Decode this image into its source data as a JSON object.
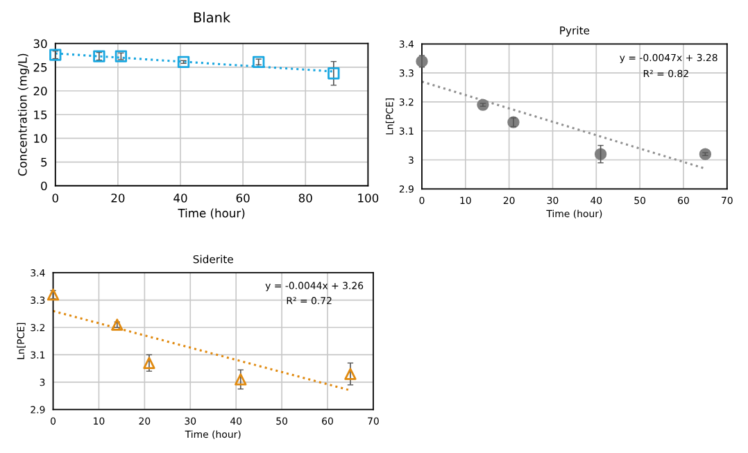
{
  "chart_data": [
    {
      "type": "scatter",
      "title": "Blank",
      "xlabel": "Time (hour)",
      "ylabel": "Concentration (mg/L)",
      "xlim": [
        0,
        100
      ],
      "xticks": [
        0,
        20,
        40,
        60,
        80,
        100
      ],
      "ylim": [
        0,
        30
      ],
      "yticks": [
        0,
        5,
        10,
        15,
        20,
        25,
        30
      ],
      "grid": true,
      "series": [
        {
          "x": [
            0,
            14,
            21,
            41,
            65,
            89
          ],
          "values": [
            27.6,
            27.3,
            27.3,
            26.1,
            26.1,
            23.7
          ],
          "errors": [
            0.8,
            0.8,
            0.7,
            0.3,
            0.6,
            2.5
          ],
          "color": "#1aa7e0",
          "marker": "square"
        },
        {
          "type": "line",
          "x": [
            0,
            89
          ],
          "values": [
            27.9,
            24.1
          ],
          "color": "#1aa7e0",
          "line_style": "dotted",
          "marker": "none"
        }
      ]
    },
    {
      "type": "scatter",
      "title": "Pyrite",
      "xlabel": "Time (hour)",
      "ylabel": "Ln[PCE]",
      "xlim": [
        0,
        70
      ],
      "xticks": [
        0,
        10,
        20,
        30,
        40,
        50,
        60,
        70
      ],
      "ylim": [
        2.9,
        3.4
      ],
      "yticks": [
        2.9,
        3,
        3.1,
        3.2,
        3.3,
        3.4
      ],
      "grid": true,
      "annotations": [
        "y = -0.0047x + 3.28",
        "R² = 0.82"
      ],
      "series": [
        {
          "x": [
            0,
            14,
            21,
            41,
            65
          ],
          "values": [
            3.34,
            3.19,
            3.13,
            3.02,
            3.02
          ],
          "errors": [
            0.02,
            0.005,
            0.015,
            0.03,
            0.005
          ],
          "color": "#808080",
          "marker": "circle"
        },
        {
          "type": "line",
          "x": [
            0,
            65
          ],
          "values": [
            3.27,
            2.97
          ],
          "color": "#909090",
          "line_style": "dotted",
          "marker": "none"
        }
      ]
    },
    {
      "type": "scatter",
      "title": "Siderite",
      "xlabel": "Time (hour)",
      "ylabel": "Ln[PCE]",
      "xlim": [
        0,
        70
      ],
      "xticks": [
        0,
        10,
        20,
        30,
        40,
        50,
        60,
        70
      ],
      "ylim": [
        2.9,
        3.4
      ],
      "yticks": [
        2.9,
        3,
        3.1,
        3.2,
        3.3,
        3.4
      ],
      "grid": true,
      "annotations": [
        "y = -0.0044x + 3.26",
        "R² = 0.72"
      ],
      "series": [
        {
          "x": [
            0,
            14,
            21,
            41,
            65
          ],
          "values": [
            3.32,
            3.21,
            3.07,
            3.01,
            3.03
          ],
          "errors": [
            0.015,
            0.01,
            0.03,
            0.035,
            0.04
          ],
          "color": "#e08a10",
          "marker": "triangle"
        },
        {
          "type": "line",
          "x": [
            0,
            65
          ],
          "values": [
            3.26,
            2.97
          ],
          "color": "#e08a10",
          "line_style": "dotted",
          "marker": "none"
        }
      ]
    }
  ]
}
